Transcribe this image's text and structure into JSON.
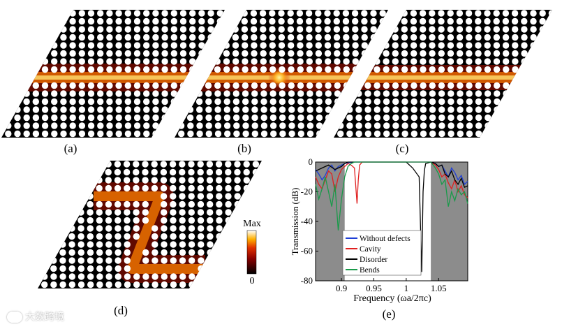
{
  "panels": [
    {
      "id": "a",
      "label": "(a)",
      "kind": "straight"
    },
    {
      "id": "b",
      "label": "(b)",
      "kind": "cavity"
    },
    {
      "id": "c",
      "label": "(c)",
      "kind": "disorder"
    },
    {
      "id": "d",
      "label": "(d)",
      "kind": "bend"
    },
    {
      "id": "e",
      "label": "(e)",
      "kind": "chart"
    }
  ],
  "colorbar": {
    "max_label": "Max",
    "min_label": "0"
  },
  "chart_data": {
    "type": "line",
    "title": "",
    "xlabel": "Frequency (ωa/2πc)",
    "ylabel": "Transmission (dB)",
    "xlim": [
      0.86,
      1.095
    ],
    "ylim": [
      -80,
      0
    ],
    "xticks": [
      "0.9",
      "0.95",
      "1",
      "1.05"
    ],
    "yticks": [
      "0",
      "-20",
      "-40",
      "-60",
      "-80"
    ],
    "shaded_bands": [
      [
        0.86,
        0.905
      ],
      [
        1.038,
        1.095
      ]
    ],
    "legend_position": "lower-left",
    "series": [
      {
        "name": "Without defects",
        "color": "#1f3fd6",
        "x": [
          0.86,
          0.865,
          0.87,
          0.875,
          0.88,
          0.885,
          0.89,
          0.895,
          0.9,
          0.905,
          0.91,
          0.92,
          0.95,
          1.0,
          1.03,
          1.038,
          1.045,
          1.05,
          1.055,
          1.06,
          1.065,
          1.07,
          1.075,
          1.08,
          1.085,
          1.09,
          1.095
        ],
        "y": [
          -5,
          -8,
          -12,
          -9,
          -4,
          -2,
          -6,
          -3,
          -2,
          -1,
          -0.5,
          0,
          0,
          0,
          0,
          0,
          -1,
          -3,
          -2,
          -6,
          -10,
          -4,
          -7,
          -12,
          -9,
          -15,
          -13
        ]
      },
      {
        "name": "Cavity",
        "color": "#e02020",
        "x": [
          0.86,
          0.865,
          0.87,
          0.875,
          0.88,
          0.885,
          0.89,
          0.895,
          0.9,
          0.905,
          0.91,
          0.915,
          0.92,
          0.924,
          0.926,
          0.928,
          0.932,
          0.95,
          1.0,
          1.03,
          1.038,
          1.045,
          1.05,
          1.055,
          1.06,
          1.065,
          1.07,
          1.075,
          1.08,
          1.085,
          1.09,
          1.095
        ],
        "y": [
          -10,
          -15,
          -18,
          -12,
          -6,
          -8,
          -20,
          -10,
          -5,
          -3,
          -1,
          -2,
          -4,
          -28,
          -12,
          -2,
          0,
          0,
          0,
          0,
          0,
          -2,
          -5,
          -10,
          -8,
          -14,
          -18,
          -12,
          -20,
          -16,
          -22,
          -24
        ]
      },
      {
        "name": "Disorder",
        "color": "#000000",
        "x": [
          0.86,
          0.87,
          0.88,
          0.89,
          0.9,
          0.905,
          0.91,
          0.95,
          1.0,
          1.01,
          1.02,
          1.024,
          1.026,
          1.028,
          1.03,
          1.038,
          1.045,
          1.05,
          1.055,
          1.06,
          1.065,
          1.07,
          1.075,
          1.08,
          1.085,
          1.09,
          1.095
        ],
        "y": [
          -6,
          -4,
          -2,
          -5,
          -3,
          -1,
          0,
          0,
          0,
          -4,
          -10,
          -74,
          -20,
          -6,
          -1,
          0,
          -1,
          -3,
          -2,
          -8,
          -10,
          -6,
          -12,
          -15,
          -11,
          -17,
          -16
        ]
      },
      {
        "name": "Bends",
        "color": "#1a9a4a",
        "x": [
          0.86,
          0.865,
          0.87,
          0.875,
          0.88,
          0.885,
          0.89,
          0.895,
          0.9,
          0.905,
          0.91,
          0.915,
          0.92,
          0.95,
          1.0,
          1.03,
          1.038,
          1.045,
          1.05,
          1.055,
          1.06,
          1.065,
          1.07,
          1.075,
          1.08,
          1.085,
          1.09,
          1.095
        ],
        "y": [
          -15,
          -25,
          -18,
          -10,
          -20,
          -30,
          -15,
          -46,
          -25,
          -10,
          -3,
          -1,
          0,
          0,
          0,
          0,
          0,
          -4,
          -8,
          -15,
          -12,
          -30,
          -20,
          -26,
          -18,
          -22,
          -20,
          -28
        ]
      }
    ]
  },
  "watermark": {
    "text": "大数跨境"
  }
}
